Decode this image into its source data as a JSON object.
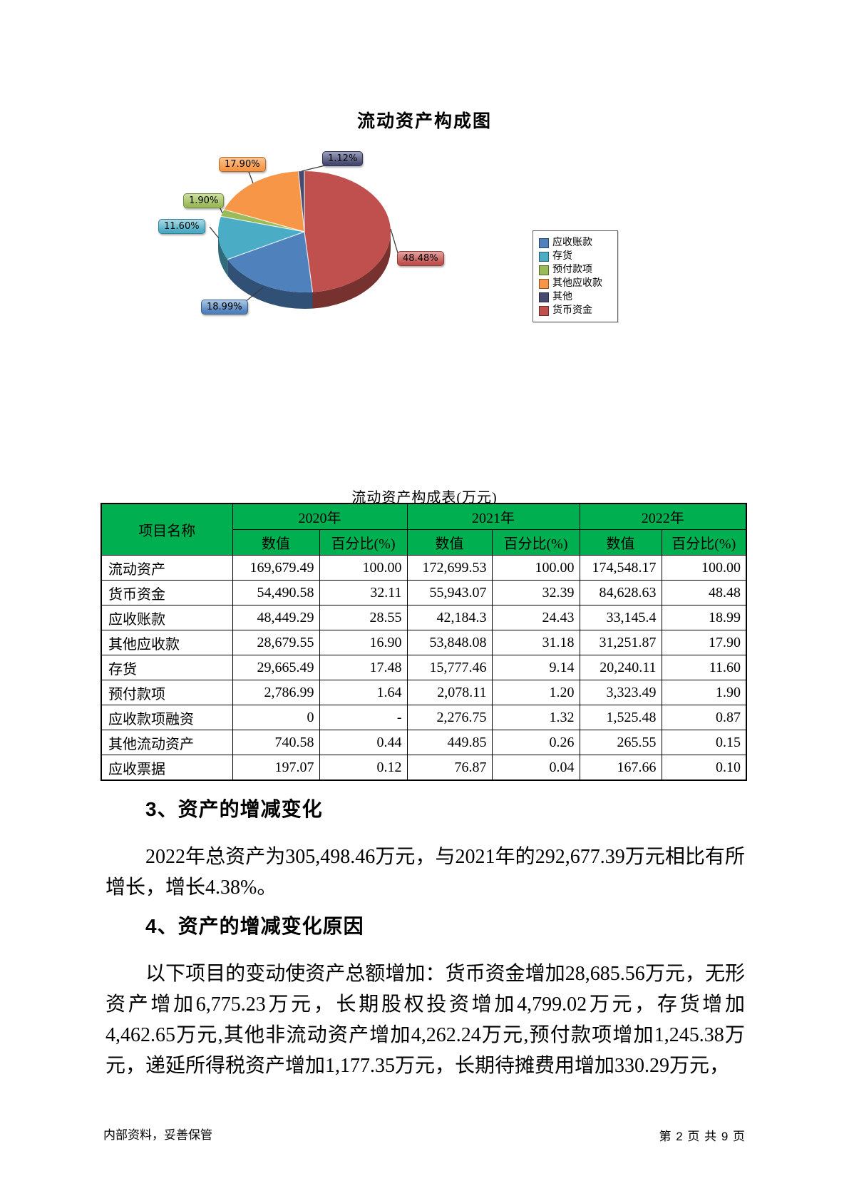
{
  "chart_data": {
    "type": "pie",
    "title": "流动资产构成图",
    "effect_3d": true,
    "unit": "%",
    "legend_position": "right",
    "slices": [
      {
        "label": "货币资金",
        "value": 48.48,
        "display": "48.48%",
        "color": "#C0504D",
        "light": "#E2A4A2",
        "border": "#8F3D3B"
      },
      {
        "label": "应收账款",
        "value": 18.99,
        "display": "18.99%",
        "color": "#4F81BD",
        "light": "#AFC7E3",
        "border": "#38608E"
      },
      {
        "label": "存货",
        "value": 11.6,
        "display": "11.60%",
        "color": "#4BACC6",
        "light": "#A9D8E4",
        "border": "#357E92"
      },
      {
        "label": "预付款项",
        "value": 1.9,
        "display": "1.90%",
        "color": "#9BBB59",
        "light": "#CFDFA3",
        "border": "#6F893E"
      },
      {
        "label": "其他应收款",
        "value": 17.9,
        "display": "17.90%",
        "color": "#F79646",
        "light": "#FBC493",
        "border": "#B56A2B"
      },
      {
        "label": "其他",
        "value": 1.12,
        "display": "1.12%",
        "color": "#474A70",
        "light": "#9DA1BF",
        "border": "#2E3050"
      }
    ],
    "legend_items": [
      "应收账款",
      "存货",
      "预付款项",
      "其他应收款",
      "其他",
      "货币资金"
    ]
  },
  "table": {
    "title": "流动资产构成表(万元)",
    "header_bg": "#00B050",
    "header": {
      "item": "项目名称",
      "years": [
        "2020年",
        "2021年",
        "2022年"
      ],
      "value_label": "数值",
      "pct_label": "百分比(%)"
    },
    "rows": [
      [
        "流动资产",
        "169,679.49",
        "100.00",
        "172,699.53",
        "100.00",
        "174,548.17",
        "100.00"
      ],
      [
        "货币资金",
        "54,490.58",
        "32.11",
        "55,943.07",
        "32.39",
        "84,628.63",
        "48.48"
      ],
      [
        "应收账款",
        "48,449.29",
        "28.55",
        "42,184.3",
        "24.43",
        "33,145.4",
        "18.99"
      ],
      [
        "其他应收款",
        "28,679.55",
        "16.90",
        "53,848.08",
        "31.18",
        "31,251.87",
        "17.90"
      ],
      [
        "存货",
        "29,665.49",
        "17.48",
        "15,777.46",
        "9.14",
        "20,240.11",
        "11.60"
      ],
      [
        "预付款项",
        "2,786.99",
        "1.64",
        "2,078.11",
        "1.20",
        "3,323.49",
        "1.90"
      ],
      [
        "应收款项融资",
        "0",
        "-",
        "2,276.75",
        "1.32",
        "1,525.48",
        "0.87"
      ],
      [
        "其他流动资产",
        "740.58",
        "0.44",
        "449.85",
        "0.26",
        "265.55",
        "0.15"
      ],
      [
        "应收票据",
        "197.07",
        "0.12",
        "76.87",
        "0.04",
        "167.66",
        "0.10"
      ]
    ]
  },
  "sections": [
    {
      "heading": "3、资产的增减变化",
      "paragraphs": [
        "2022年总资产为305,498.46万元，与2021年的292,677.39万元相比有所增长，增长4.38%。"
      ]
    },
    {
      "heading": "4、资产的增减变化原因",
      "paragraphs": [
        "以下项目的变动使资产总额增加：货币资金增加28,685.56万元，无形资产增加6,775.23万元，长期股权投资增加4,799.02万元，存货增加4,462.65万元,其他非流动资产增加4,262.24万元,预付款项增加1,245.38万元，递延所得税资产增加1,177.35万元，长期待摊费用增加330.29万元，"
      ]
    }
  ],
  "footer": {
    "left": "内部资料，妥善保管",
    "right": "第 2 页  共 9 页"
  }
}
